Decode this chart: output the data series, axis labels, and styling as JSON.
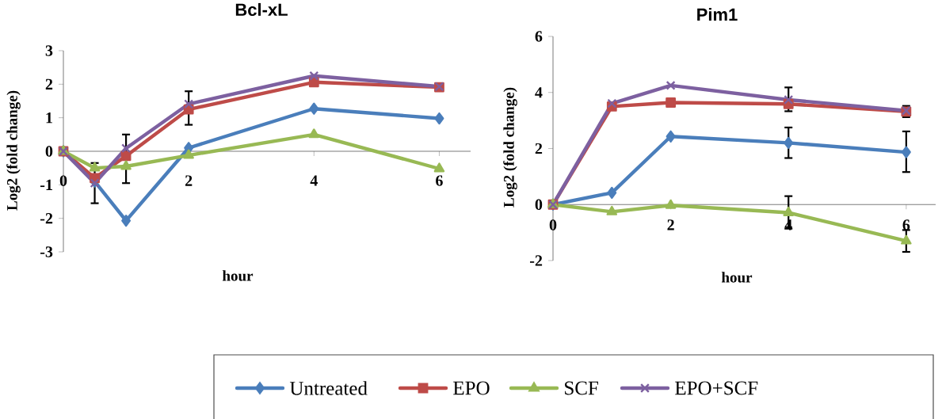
{
  "chart_data": [
    {
      "type": "line",
      "title": "Bcl-xL",
      "xlabel": "hour",
      "ylabel": "Log2 (fold change)",
      "x": [
        0,
        0.5,
        1,
        2,
        4,
        6
      ],
      "xlim": [
        0,
        6.5
      ],
      "ylim": [
        -3,
        3
      ],
      "xticks": [
        0,
        2,
        4,
        6
      ],
      "yticks": [
        -3,
        -2,
        -1,
        0,
        1,
        2,
        3
      ],
      "legend": "bottom",
      "series": [
        {
          "name": "Untreated",
          "color": "#4a7ebb",
          "marker": "diamond",
          "values": [
            0,
            -0.9,
            -2.07,
            0.1,
            1.27,
            0.98
          ]
        },
        {
          "name": "EPO",
          "color": "#be4b48",
          "marker": "square",
          "values": [
            0,
            -0.8,
            -0.14,
            1.25,
            2.06,
            1.91
          ],
          "errors": [
            null,
            null,
            [
              -0.95,
              0.5
            ],
            [
              0.79,
              1.79
            ],
            null,
            null
          ]
        },
        {
          "name": "SCF",
          "color": "#98b954",
          "marker": "triangle",
          "values": [
            0,
            -0.5,
            -0.45,
            -0.12,
            0.5,
            -0.52
          ]
        },
        {
          "name": "EPO+SCF",
          "color": "#7d60a0",
          "marker": "cross",
          "values": [
            0,
            -0.95,
            0.09,
            1.41,
            2.25,
            1.93
          ],
          "errors": [
            null,
            [
              -1.55,
              -0.35
            ],
            null,
            null,
            null,
            null
          ]
        }
      ]
    },
    {
      "type": "line",
      "title": "Pim1",
      "xlabel": "hour",
      "ylabel": "Log2 (fold change)",
      "x": [
        0,
        1,
        2,
        4,
        6
      ],
      "xlim": [
        0,
        6.5
      ],
      "ylim": [
        -2,
        6
      ],
      "xticks": [
        0,
        2,
        4,
        6
      ],
      "yticks": [
        -2,
        0,
        2,
        4,
        6
      ],
      "series": [
        {
          "color": "#4a7ebb",
          "marker": "diamond",
          "values": [
            0,
            0.42,
            2.43,
            2.2,
            1.87
          ],
          "errors": [
            null,
            null,
            null,
            [
              1.66,
              2.75
            ],
            [
              1.16,
              2.61
            ]
          ]
        },
        {
          "color": "#be4b48",
          "marker": "square",
          "values": [
            0,
            3.5,
            3.64,
            3.59,
            3.32
          ],
          "errors": [
            null,
            null,
            null,
            null,
            [
              3.12,
              3.52
            ]
          ]
        },
        {
          "color": "#98b954",
          "marker": "triangle",
          "values": [
            0,
            -0.26,
            -0.03,
            -0.29,
            -1.3
          ],
          "errors": [
            null,
            null,
            null,
            [
              -0.86,
              0.3
            ],
            [
              -1.69,
              -0.91
            ]
          ]
        },
        {
          "color": "#7d60a0",
          "marker": "cross",
          "values": [
            0,
            3.61,
            4.25,
            3.74,
            3.35
          ],
          "errors": [
            null,
            null,
            null,
            [
              3.33,
              4.18
            ],
            null
          ]
        }
      ]
    }
  ]
}
